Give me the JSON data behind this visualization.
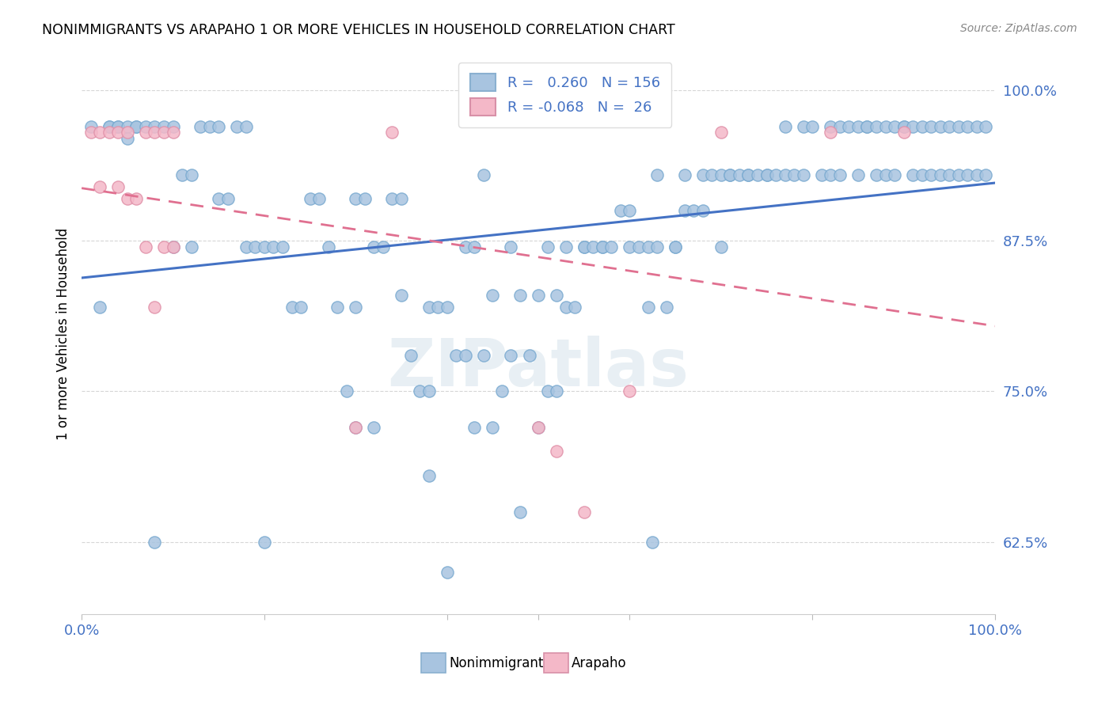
{
  "title": "NONIMMIGRANTS VS ARAPAHO 1 OR MORE VEHICLES IN HOUSEHOLD CORRELATION CHART",
  "source": "Source: ZipAtlas.com",
  "ylabel": "1 or more Vehicles in Household",
  "ytick_labels": [
    "62.5%",
    "75.0%",
    "87.5%",
    "100.0%"
  ],
  "ytick_values": [
    0.625,
    0.75,
    0.875,
    1.0
  ],
  "legend_blue_r": "0.260",
  "legend_blue_n": "156",
  "legend_pink_r": "-0.068",
  "legend_pink_n": "26",
  "legend_label_blue": "Nonimmigrants",
  "legend_label_pink": "Arapaho",
  "blue_color": "#a8c4e0",
  "pink_color": "#f4b8c8",
  "line_blue": "#4472c4",
  "line_pink": "#e07090",
  "accent_color": "#4472c4",
  "watermark_text": "ZIPatlas",
  "blue_x": [
    0.01,
    0.02,
    0.03,
    0.03,
    0.04,
    0.04,
    0.05,
    0.05,
    0.06,
    0.06,
    0.07,
    0.08,
    0.09,
    0.1,
    0.11,
    0.12,
    0.12,
    0.13,
    0.14,
    0.15,
    0.15,
    0.16,
    0.17,
    0.18,
    0.19,
    0.2,
    0.21,
    0.22,
    0.23,
    0.24,
    0.25,
    0.26,
    0.27,
    0.28,
    0.29,
    0.3,
    0.3,
    0.31,
    0.32,
    0.33,
    0.34,
    0.35,
    0.36,
    0.37,
    0.38,
    0.38,
    0.39,
    0.4,
    0.41,
    0.42,
    0.42,
    0.43,
    0.44,
    0.44,
    0.45,
    0.45,
    0.46,
    0.47,
    0.47,
    0.48,
    0.48,
    0.49,
    0.5,
    0.5,
    0.51,
    0.51,
    0.52,
    0.52,
    0.53,
    0.53,
    0.54,
    0.55,
    0.55,
    0.56,
    0.57,
    0.57,
    0.58,
    0.59,
    0.6,
    0.6,
    0.61,
    0.62,
    0.62,
    0.63,
    0.63,
    0.64,
    0.65,
    0.65,
    0.66,
    0.66,
    0.67,
    0.68,
    0.68,
    0.69,
    0.7,
    0.7,
    0.71,
    0.71,
    0.72,
    0.73,
    0.73,
    0.74,
    0.75,
    0.75,
    0.76,
    0.77,
    0.77,
    0.78,
    0.79,
    0.79,
    0.8,
    0.81,
    0.82,
    0.82,
    0.83,
    0.83,
    0.84,
    0.85,
    0.85,
    0.86,
    0.86,
    0.87,
    0.87,
    0.88,
    0.88,
    0.89,
    0.89,
    0.9,
    0.9,
    0.91,
    0.91,
    0.92,
    0.92,
    0.93,
    0.93,
    0.94,
    0.94,
    0.95,
    0.95,
    0.96,
    0.96,
    0.97,
    0.97,
    0.98,
    0.98,
    0.99,
    0.99,
    0.1,
    0.18,
    0.2,
    0.08,
    0.625,
    0.38,
    0.4,
    0.3,
    0.32,
    0.35,
    0.43
  ],
  "blue_y": [
    0.97,
    0.82,
    0.97,
    0.97,
    0.97,
    0.97,
    0.97,
    0.96,
    0.97,
    0.97,
    0.97,
    0.97,
    0.97,
    0.97,
    0.93,
    0.93,
    0.87,
    0.97,
    0.97,
    0.91,
    0.97,
    0.91,
    0.97,
    0.87,
    0.87,
    0.87,
    0.87,
    0.87,
    0.82,
    0.82,
    0.91,
    0.91,
    0.87,
    0.82,
    0.75,
    0.82,
    0.91,
    0.91,
    0.87,
    0.87,
    0.91,
    0.91,
    0.78,
    0.75,
    0.75,
    0.82,
    0.82,
    0.82,
    0.78,
    0.78,
    0.87,
    0.87,
    0.78,
    0.93,
    0.72,
    0.83,
    0.75,
    0.78,
    0.87,
    0.65,
    0.83,
    0.78,
    0.72,
    0.83,
    0.75,
    0.87,
    0.75,
    0.83,
    0.82,
    0.87,
    0.82,
    0.87,
    0.87,
    0.87,
    0.87,
    0.87,
    0.87,
    0.9,
    0.9,
    0.87,
    0.87,
    0.82,
    0.87,
    0.87,
    0.93,
    0.82,
    0.87,
    0.87,
    0.9,
    0.93,
    0.9,
    0.93,
    0.9,
    0.93,
    0.87,
    0.93,
    0.93,
    0.93,
    0.93,
    0.93,
    0.93,
    0.93,
    0.93,
    0.93,
    0.93,
    0.93,
    0.97,
    0.93,
    0.97,
    0.93,
    0.97,
    0.93,
    0.97,
    0.93,
    0.97,
    0.93,
    0.97,
    0.93,
    0.97,
    0.97,
    0.97,
    0.97,
    0.93,
    0.97,
    0.93,
    0.97,
    0.93,
    0.97,
    0.97,
    0.97,
    0.93,
    0.97,
    0.93,
    0.97,
    0.93,
    0.97,
    0.93,
    0.97,
    0.93,
    0.97,
    0.93,
    0.97,
    0.93,
    0.97,
    0.93,
    0.97,
    0.93,
    0.87,
    0.97,
    0.625,
    0.625,
    0.625,
    0.68,
    0.6,
    0.72,
    0.72,
    0.83,
    0.72
  ],
  "pink_x": [
    0.01,
    0.02,
    0.02,
    0.03,
    0.04,
    0.04,
    0.05,
    0.05,
    0.06,
    0.07,
    0.07,
    0.08,
    0.08,
    0.09,
    0.09,
    0.1,
    0.1,
    0.3,
    0.34,
    0.5,
    0.52,
    0.55,
    0.6,
    0.7,
    0.82,
    0.9
  ],
  "pink_y": [
    0.965,
    0.965,
    0.92,
    0.965,
    0.92,
    0.965,
    0.91,
    0.965,
    0.91,
    0.965,
    0.87,
    0.965,
    0.82,
    0.87,
    0.965,
    0.87,
    0.965,
    0.72,
    0.965,
    0.72,
    0.7,
    0.65,
    0.75,
    0.965,
    0.965,
    0.965
  ],
  "xmin": 0.0,
  "xmax": 1.0,
  "ymin": 0.565,
  "ymax": 1.03
}
